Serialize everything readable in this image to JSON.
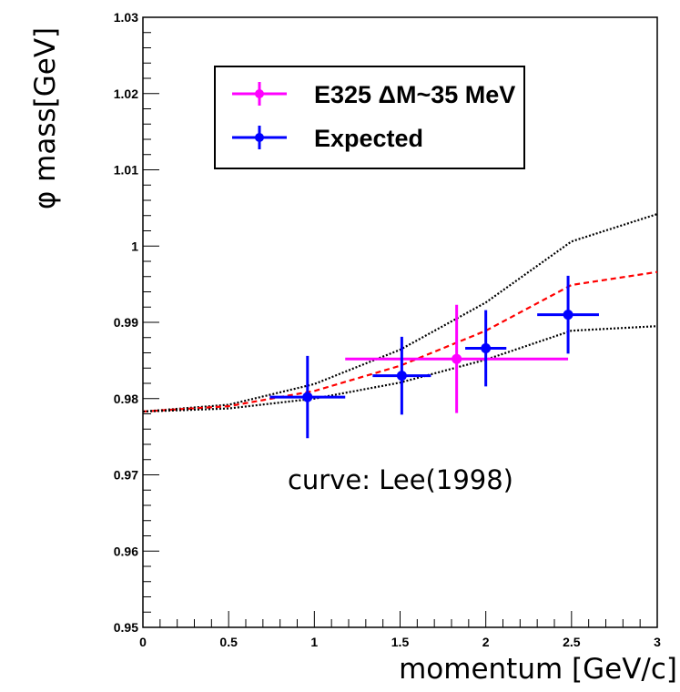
{
  "chart_data": {
    "type": "scatter",
    "title": "",
    "xlabel": "momentum [GeV/c]",
    "ylabel": "φ mass[GeV]",
    "xlim": [
      0,
      3
    ],
    "ylim": [
      0.95,
      1.03
    ],
    "x_ticks": [
      "0",
      "0.5",
      "1",
      "1.5",
      "2",
      "2.5",
      "3"
    ],
    "y_ticks": [
      "0.95",
      "0.96",
      "0.97",
      "0.98",
      "0.99",
      "1",
      "1.01",
      "1.02",
      "1.03"
    ],
    "grid": false,
    "legend_position": "top-left",
    "series": [
      {
        "name": "E325 ΔM~35 MeV",
        "color": "#ff00ff",
        "points": [
          {
            "x": 1.83,
            "y": 0.9852,
            "xerr": 0.65,
            "yerr": 0.0071
          }
        ]
      },
      {
        "name": "Expected",
        "color": "#0000ff",
        "points": [
          {
            "x": 0.96,
            "y": 0.9802,
            "xerr": 0.22,
            "yerr": 0.0054
          },
          {
            "x": 1.51,
            "y": 0.983,
            "xerr": 0.17,
            "yerr": 0.0051
          },
          {
            "x": 2.0,
            "y": 0.9866,
            "xerr": 0.12,
            "yerr": 0.005
          },
          {
            "x": 2.48,
            "y": 0.991,
            "xerr": 0.18,
            "yerr": 0.0051
          }
        ]
      }
    ],
    "curves": [
      {
        "style": "dotted",
        "color": "#000000",
        "x": [
          0,
          0.5,
          1,
          1.5,
          2,
          2.5,
          3
        ],
        "y": [
          0.9783,
          0.9792,
          0.9819,
          0.9864,
          0.9926,
          1.0006,
          1.0042
        ]
      },
      {
        "style": "dashed",
        "color": "#ff0000",
        "x": [
          0,
          0.5,
          1,
          1.5,
          2,
          2.5,
          3
        ],
        "y": [
          0.9783,
          0.979,
          0.981,
          0.9843,
          0.9889,
          0.9949,
          0.9966
        ]
      },
      {
        "style": "dotted",
        "color": "#000000",
        "x": [
          0,
          0.5,
          1,
          1.5,
          2,
          2.5,
          3
        ],
        "y": [
          0.9783,
          0.9787,
          0.98,
          0.9821,
          0.9851,
          0.9889,
          0.9895
        ]
      }
    ],
    "annotation": "curve: Lee(1998)"
  }
}
